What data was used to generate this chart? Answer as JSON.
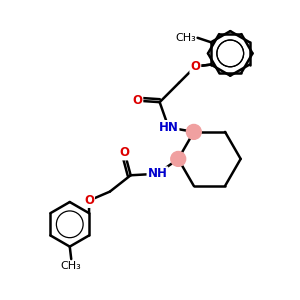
{
  "background": "#ffffff",
  "bond_color": "#000000",
  "N_color": "#0000cd",
  "O_color": "#dd0000",
  "highlight_color": "#f0a0a0",
  "bond_width": 1.8,
  "font_size_atom": 8.5,
  "fig_width": 3.0,
  "fig_height": 3.0,
  "xlim": [
    0.0,
    10.0
  ],
  "ylim": [
    0.5,
    10.5
  ]
}
